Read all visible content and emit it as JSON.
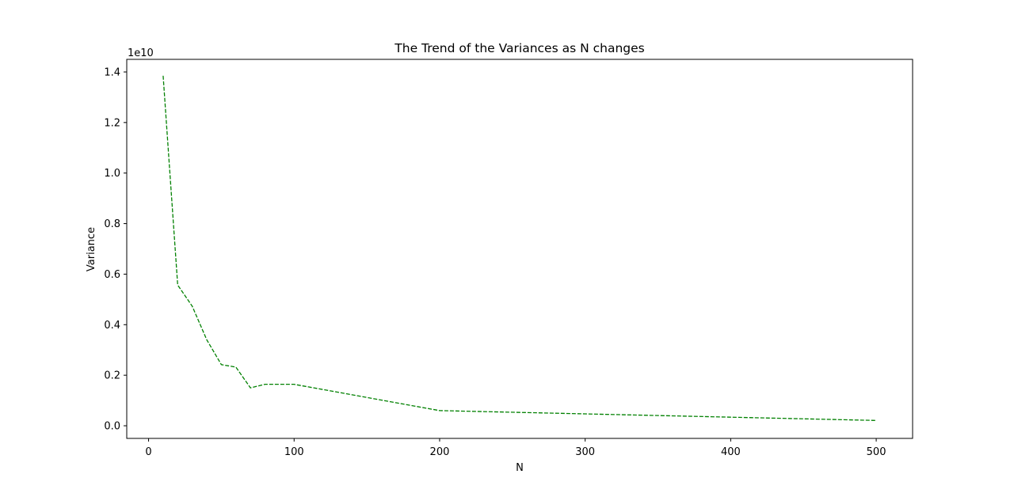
{
  "chart_data": {
    "type": "line",
    "title": "The Trend of the Variances as N changes",
    "xlabel": "N",
    "ylabel": "Variance",
    "y_offset_label": "1e10",
    "xlim": [
      -15,
      525
    ],
    "ylim": [
      -0.05,
      1.45
    ],
    "xticks": [
      0,
      100,
      200,
      300,
      400,
      500
    ],
    "xtick_labels": [
      "0",
      "100",
      "200",
      "300",
      "400",
      "500"
    ],
    "yticks": [
      0.0,
      0.2,
      0.4,
      0.6,
      0.8,
      1.0,
      1.2,
      1.4
    ],
    "ytick_labels": [
      "0.0",
      "0.2",
      "0.4",
      "0.6",
      "0.8",
      "1.0",
      "1.2",
      "1.4"
    ],
    "grid": false,
    "series": [
      {
        "color": "#008000",
        "linestyle": "dashed",
        "x": [
          10,
          20,
          30,
          40,
          50,
          60,
          70,
          80,
          90,
          100,
          200,
          300,
          400,
          500
        ],
        "y": [
          1.385,
          0.557,
          0.473,
          0.34,
          0.242,
          0.232,
          0.15,
          0.164,
          0.164,
          0.164,
          0.06,
          0.047,
          0.034,
          0.021
        ]
      }
    ]
  }
}
